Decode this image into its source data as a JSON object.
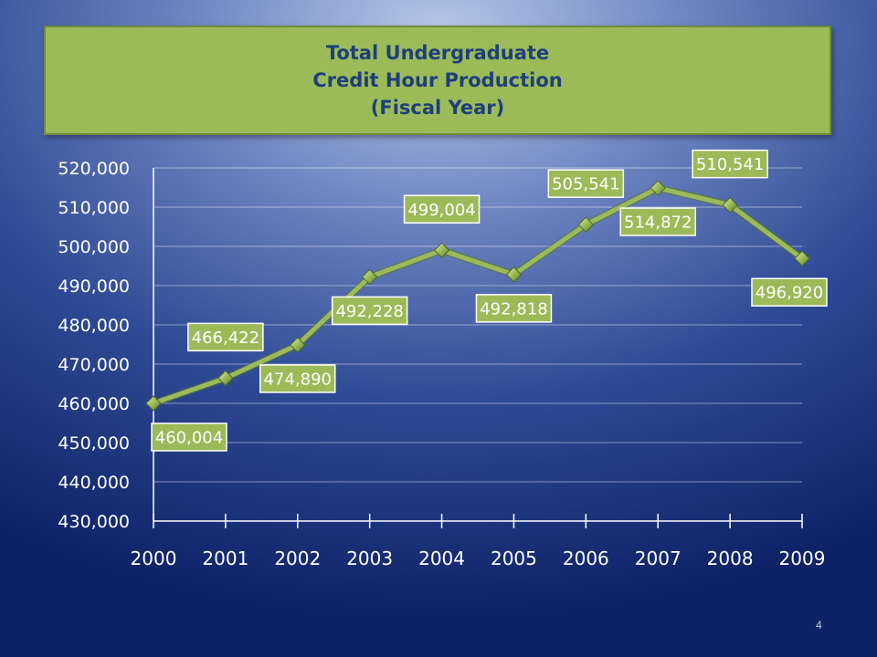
{
  "header": {
    "title_lines": [
      "Total Undergraduate",
      "Credit Hour Production",
      "(Fiscal Year)"
    ]
  },
  "footer": {
    "slide_number": "4"
  },
  "colors": {
    "accent": "#9bbb59",
    "title_text": "#1f3f7a",
    "line": "#9bbb59",
    "axis": "#ffffff"
  },
  "chart_data": {
    "type": "line",
    "title": "Total Undergraduate Credit Hour Production (Fiscal Year)",
    "categories": [
      "2000",
      "2001",
      "2002",
      "2003",
      "2004",
      "2005",
      "2006",
      "2007",
      "2008",
      "2009"
    ],
    "series": [
      {
        "values": [
          460004,
          466422,
          474890,
          492228,
          499004,
          492818,
          505541,
          514872,
          510541,
          496920
        ],
        "labels": [
          "460,004",
          "466,422",
          "474,890",
          "492,228",
          "499,004",
          "492,818",
          "505,541",
          "514,872",
          "510,541",
          "496,920"
        ],
        "label_positions": [
          "below",
          "above",
          "below",
          "below",
          "above",
          "below",
          "above",
          "below",
          "above",
          "below"
        ]
      }
    ],
    "y_ticks": [
      "430,000",
      "440,000",
      "450,000",
      "460,000",
      "470,000",
      "480,000",
      "490,000",
      "500,000",
      "510,000",
      "520,000"
    ],
    "ylim": [
      430000,
      520000
    ],
    "grid": true,
    "legend": "none",
    "marker": "diamond"
  }
}
